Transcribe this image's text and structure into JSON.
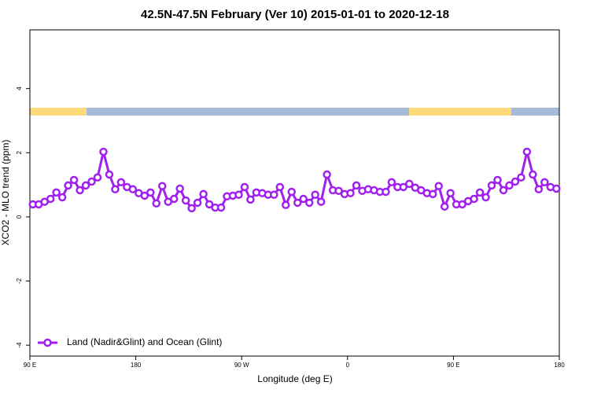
{
  "chart_data": {
    "type": "line",
    "title": "42.5N-47.5N February (Ver 10)   2015-01-01 to 2020-12-18",
    "xlabel": "Longitude (deg E)",
    "ylabel": "XCO2 - MLO trend (ppm)",
    "x": [
      92.5,
      97.5,
      102.5,
      107.5,
      112.5,
      117.5,
      122.5,
      127.5,
      132.5,
      137.5,
      142.5,
      147.5,
      152.5,
      157.5,
      162.5,
      167.5,
      172.5,
      177.5,
      182.5,
      187.5,
      192.5,
      197.5,
      202.5,
      207.5,
      212.5,
      217.5,
      222.5,
      227.5,
      232.5,
      237.5,
      242.5,
      247.5,
      252.5,
      257.5,
      262.5,
      267.5,
      272.5,
      277.5,
      282.5,
      287.5,
      292.5,
      297.5,
      302.5,
      307.5,
      312.5,
      317.5,
      322.5,
      327.5,
      332.5,
      337.5,
      342.5,
      347.5,
      352.5,
      357.5,
      362.5,
      367.5,
      372.5,
      377.5,
      382.5,
      387.5,
      392.5,
      397.5,
      402.5,
      407.5,
      412.5,
      417.5,
      422.5,
      427.5,
      432.5,
      437.5,
      442.5,
      447.5,
      452.5,
      457.5,
      462.5,
      467.5,
      472.5,
      477.5,
      482.5,
      487.5,
      492.5,
      497.5,
      502.5,
      507.5,
      512.5,
      517.5,
      522.5,
      527.5,
      532.5,
      537.5
    ],
    "series": [
      {
        "name": "Land (Nadir&Glint) and Ocean (Glint)",
        "color": "#a020f0",
        "values": [
          0.39,
          0.39,
          0.47,
          0.56,
          0.76,
          0.61,
          0.98,
          1.15,
          0.83,
          0.98,
          1.1,
          1.23,
          2.03,
          1.32,
          0.86,
          1.08,
          0.93,
          0.86,
          0.74,
          0.66,
          0.76,
          0.42,
          0.96,
          0.47,
          0.56,
          0.88,
          0.51,
          0.27,
          0.44,
          0.71,
          0.39,
          0.29,
          0.29,
          0.64,
          0.66,
          0.69,
          0.93,
          0.54,
          0.76,
          0.74,
          0.69,
          0.69,
          0.93,
          0.37,
          0.78,
          0.44,
          0.56,
          0.44,
          0.69,
          0.47,
          1.32,
          0.83,
          0.81,
          0.71,
          0.74,
          0.98,
          0.81,
          0.86,
          0.83,
          0.78,
          0.78,
          1.08,
          0.93,
          0.93,
          1.03,
          0.91,
          0.83,
          0.74,
          0.71,
          0.96,
          0.32,
          0.74,
          0.39,
          0.39,
          0.49,
          0.56,
          0.76,
          0.61,
          0.98,
          1.15,
          0.83,
          0.98,
          1.1,
          1.23,
          2.03,
          1.32,
          0.86,
          1.08,
          0.93,
          0.88
        ]
      }
    ],
    "xlim": [
      90,
      540
    ],
    "xticks": [
      {
        "value": 90,
        "label": "90 E"
      },
      180,
      {
        "value": 270,
        "label": "90 W"
      },
      {
        "value": 360,
        "label": "0"
      },
      {
        "value": 450,
        "label": "90 E"
      },
      {
        "value": 540,
        "label": "180"
      }
    ],
    "ylim": [
      -4.34,
      5.83
    ],
    "yticks": [
      -4,
      -2,
      0,
      2,
      4
    ],
    "legend": "bottom-left"
  }
}
